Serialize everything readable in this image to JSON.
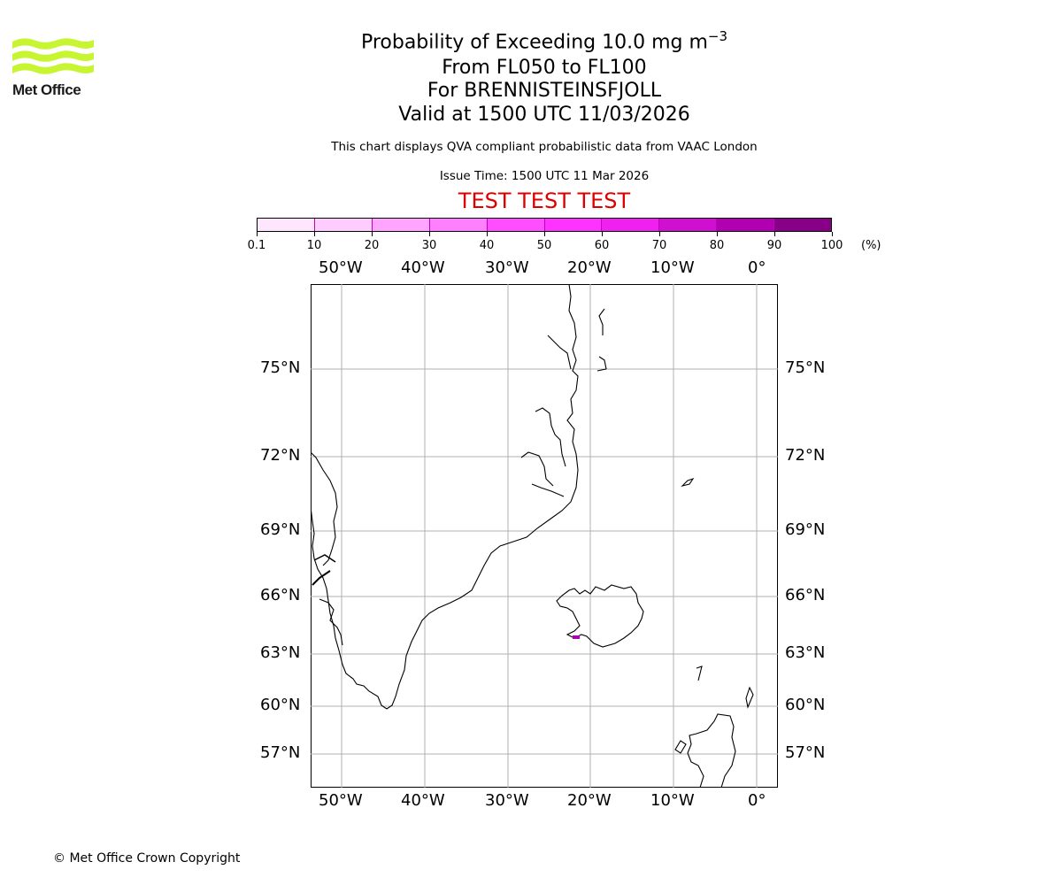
{
  "logo": {
    "brand_text": "Met Office",
    "color": "#c8f532"
  },
  "header": {
    "title_main": "Probability of Exceeding 10.0 mg m",
    "title_sup": "−3",
    "title_levels": "From FL050 to FL100",
    "title_volcano": "For BRENNISTEINSFJOLL",
    "title_valid": "Valid at 1500 UTC 11/03/2026",
    "description": "This chart displays QVA compliant probabilistic data from VAAC London",
    "issue_time": "Issue Time: 1500 UTC 11 Mar 2026",
    "test_banner": "TEST TEST TEST"
  },
  "colorbar": {
    "tick_labels": [
      "0.1",
      "10",
      "20",
      "30",
      "40",
      "50",
      "60",
      "70",
      "80",
      "90",
      "100"
    ],
    "unit": "(%)",
    "colors": [
      "#ffe6ff",
      "#ffccff",
      "#ffa5ff",
      "#ff80ff",
      "#ff4dff",
      "#ff33ff",
      "#f020f0",
      "#d010d0",
      "#b000b0",
      "#880088",
      "#600060"
    ]
  },
  "map": {
    "lon_labels": [
      "50°W",
      "40°W",
      "30°W",
      "20°W",
      "10°W",
      "0°"
    ],
    "lat_labels": [
      "75°N",
      "72°N",
      "69°N",
      "66°N",
      "63°N",
      "60°N",
      "57°N"
    ],
    "volcano_marker_color": "#b000b0"
  },
  "footer": {
    "copyright": "© Met Office Crown Copyright"
  }
}
